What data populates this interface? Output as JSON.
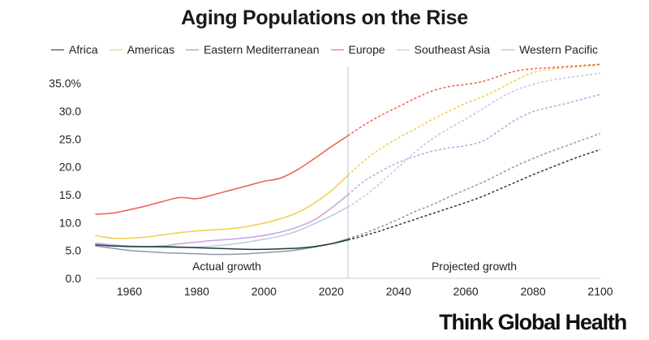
{
  "chart_data": {
    "type": "line",
    "title": "Aging Populations on the Rise",
    "xlabel": "",
    "ylabel": "",
    "xlim": [
      1950,
      2100
    ],
    "ylim": [
      0,
      38
    ],
    "split_year": 2025,
    "x_ticks": [
      1960,
      1980,
      2000,
      2020,
      2040,
      2060,
      2080,
      2100
    ],
    "y_ticks": [
      {
        "value": 0,
        "label": "0.0"
      },
      {
        "value": 5,
        "label": "5.0"
      },
      {
        "value": 10,
        "label": "10.0"
      },
      {
        "value": 15,
        "label": "15.0"
      },
      {
        "value": 20,
        "label": "20.0"
      },
      {
        "value": 25,
        "label": "25.0"
      },
      {
        "value": 30,
        "label": "30.0"
      },
      {
        "value": 35,
        "label": "35.0%"
      }
    ],
    "annotations": {
      "actual": "Actual growth",
      "projected": "Projected growth"
    },
    "series": [
      {
        "name": "Africa",
        "color": "#1f3b3a",
        "points": [
          [
            1950,
            6.0
          ],
          [
            1955,
            5.8
          ],
          [
            1960,
            5.7
          ],
          [
            1965,
            5.7
          ],
          [
            1970,
            5.7
          ],
          [
            1975,
            5.6
          ],
          [
            1980,
            5.5
          ],
          [
            1985,
            5.4
          ],
          [
            1990,
            5.3
          ],
          [
            1995,
            5.2
          ],
          [
            2000,
            5.2
          ],
          [
            2005,
            5.3
          ],
          [
            2010,
            5.4
          ],
          [
            2015,
            5.7
          ],
          [
            2020,
            6.2
          ],
          [
            2025,
            6.9
          ],
          [
            2030,
            7.7
          ],
          [
            2035,
            8.6
          ],
          [
            2040,
            9.6
          ],
          [
            2045,
            10.6
          ],
          [
            2050,
            11.6
          ],
          [
            2055,
            12.6
          ],
          [
            2060,
            13.6
          ],
          [
            2065,
            14.7
          ],
          [
            2070,
            16.0
          ],
          [
            2075,
            17.3
          ],
          [
            2080,
            18.6
          ],
          [
            2085,
            19.8
          ],
          [
            2090,
            21.0
          ],
          [
            2095,
            22.1
          ],
          [
            2100,
            23.1
          ]
        ]
      },
      {
        "name": "Americas",
        "color": "#f2cc4b",
        "points": [
          [
            1950,
            7.7
          ],
          [
            1955,
            7.2
          ],
          [
            1960,
            7.2
          ],
          [
            1965,
            7.4
          ],
          [
            1970,
            7.8
          ],
          [
            1975,
            8.2
          ],
          [
            1980,
            8.5
          ],
          [
            1985,
            8.7
          ],
          [
            1990,
            8.9
          ],
          [
            1995,
            9.3
          ],
          [
            2000,
            9.9
          ],
          [
            2005,
            10.7
          ],
          [
            2010,
            11.8
          ],
          [
            2015,
            13.5
          ],
          [
            2020,
            15.7
          ],
          [
            2025,
            18.5
          ],
          [
            2030,
            21.2
          ],
          [
            2035,
            23.4
          ],
          [
            2040,
            25.2
          ],
          [
            2045,
            26.8
          ],
          [
            2050,
            28.5
          ],
          [
            2055,
            30.0
          ],
          [
            2060,
            31.4
          ],
          [
            2065,
            32.6
          ],
          [
            2070,
            34.0
          ],
          [
            2075,
            35.6
          ],
          [
            2080,
            36.9
          ],
          [
            2085,
            37.5
          ],
          [
            2090,
            37.8
          ],
          [
            2095,
            38.0
          ],
          [
            2100,
            38.3
          ]
        ]
      },
      {
        "name": "Eastern Mediterranean",
        "color": "#8e98a8",
        "points": [
          [
            1950,
            5.8
          ],
          [
            1955,
            5.4
          ],
          [
            1960,
            5.0
          ],
          [
            1965,
            4.8
          ],
          [
            1970,
            4.6
          ],
          [
            1975,
            4.5
          ],
          [
            1980,
            4.4
          ],
          [
            1985,
            4.3
          ],
          [
            1990,
            4.3
          ],
          [
            1995,
            4.4
          ],
          [
            2000,
            4.6
          ],
          [
            2005,
            4.8
          ],
          [
            2010,
            5.1
          ],
          [
            2015,
            5.6
          ],
          [
            2020,
            6.2
          ],
          [
            2025,
            7.1
          ],
          [
            2030,
            8.1
          ],
          [
            2035,
            9.3
          ],
          [
            2040,
            10.6
          ],
          [
            2045,
            12.0
          ],
          [
            2050,
            13.2
          ],
          [
            2055,
            14.6
          ],
          [
            2060,
            15.9
          ],
          [
            2065,
            17.2
          ],
          [
            2070,
            18.7
          ],
          [
            2075,
            20.2
          ],
          [
            2080,
            21.5
          ],
          [
            2085,
            22.7
          ],
          [
            2090,
            23.8
          ],
          [
            2095,
            24.9
          ],
          [
            2100,
            26.0
          ]
        ]
      },
      {
        "name": "Europe",
        "color": "#e8604a",
        "points": [
          [
            1950,
            11.5
          ],
          [
            1955,
            11.7
          ],
          [
            1960,
            12.3
          ],
          [
            1965,
            13.0
          ],
          [
            1970,
            13.8
          ],
          [
            1975,
            14.5
          ],
          [
            1980,
            14.3
          ],
          [
            1985,
            15.0
          ],
          [
            1990,
            15.8
          ],
          [
            1995,
            16.6
          ],
          [
            2000,
            17.4
          ],
          [
            2005,
            18.0
          ],
          [
            2010,
            19.5
          ],
          [
            2015,
            21.5
          ],
          [
            2020,
            23.6
          ],
          [
            2025,
            25.6
          ],
          [
            2030,
            27.6
          ],
          [
            2035,
            29.3
          ],
          [
            2040,
            30.8
          ],
          [
            2045,
            32.3
          ],
          [
            2050,
            33.6
          ],
          [
            2055,
            34.4
          ],
          [
            2060,
            34.8
          ],
          [
            2065,
            35.3
          ],
          [
            2070,
            36.3
          ],
          [
            2075,
            37.2
          ],
          [
            2080,
            37.6
          ],
          [
            2085,
            37.8
          ],
          [
            2090,
            38.0
          ],
          [
            2095,
            38.2
          ],
          [
            2100,
            38.4
          ]
        ]
      },
      {
        "name": "Southeast Asia",
        "color": "#b5cde0",
        "points": [
          [
            1950,
            6.2
          ],
          [
            1955,
            5.9
          ],
          [
            1960,
            5.7
          ],
          [
            1965,
            5.6
          ],
          [
            1970,
            5.5
          ],
          [
            1975,
            5.5
          ],
          [
            1980,
            5.6
          ],
          [
            1985,
            5.8
          ],
          [
            1990,
            6.1
          ],
          [
            1995,
            6.5
          ],
          [
            2000,
            7.0
          ],
          [
            2005,
            7.6
          ],
          [
            2010,
            8.5
          ],
          [
            2015,
            9.8
          ],
          [
            2020,
            11.2
          ],
          [
            2025,
            12.8
          ],
          [
            2030,
            14.8
          ],
          [
            2035,
            17.3
          ],
          [
            2040,
            20.0
          ],
          [
            2045,
            22.7
          ],
          [
            2050,
            25.0
          ],
          [
            2055,
            26.9
          ],
          [
            2060,
            28.6
          ],
          [
            2065,
            30.4
          ],
          [
            2070,
            32.3
          ],
          [
            2075,
            33.8
          ],
          [
            2080,
            34.8
          ],
          [
            2085,
            35.5
          ],
          [
            2090,
            36.0
          ],
          [
            2095,
            36.4
          ],
          [
            2100,
            36.8
          ]
        ]
      },
      {
        "name": "Western Pacific",
        "color": "#c9a2df",
        "points": [
          [
            1950,
            6.3
          ],
          [
            1955,
            6.0
          ],
          [
            1960,
            5.8
          ],
          [
            1965,
            5.7
          ],
          [
            1970,
            5.8
          ],
          [
            1975,
            6.2
          ],
          [
            1980,
            6.5
          ],
          [
            1985,
            6.8
          ],
          [
            1990,
            7.0
          ],
          [
            1995,
            7.3
          ],
          [
            2000,
            7.7
          ],
          [
            2005,
            8.3
          ],
          [
            2010,
            9.2
          ],
          [
            2015,
            10.5
          ],
          [
            2020,
            12.6
          ],
          [
            2025,
            15.0
          ],
          [
            2030,
            17.5
          ],
          [
            2035,
            19.3
          ],
          [
            2040,
            20.8
          ],
          [
            2045,
            21.9
          ],
          [
            2050,
            22.8
          ],
          [
            2055,
            23.4
          ],
          [
            2060,
            23.8
          ],
          [
            2065,
            24.6
          ],
          [
            2070,
            26.5
          ],
          [
            2075,
            28.5
          ],
          [
            2080,
            29.9
          ],
          [
            2085,
            30.7
          ],
          [
            2090,
            31.4
          ],
          [
            2095,
            32.2
          ],
          [
            2100,
            33.0
          ]
        ]
      }
    ]
  },
  "brand": {
    "name": "Think Global Health"
  }
}
